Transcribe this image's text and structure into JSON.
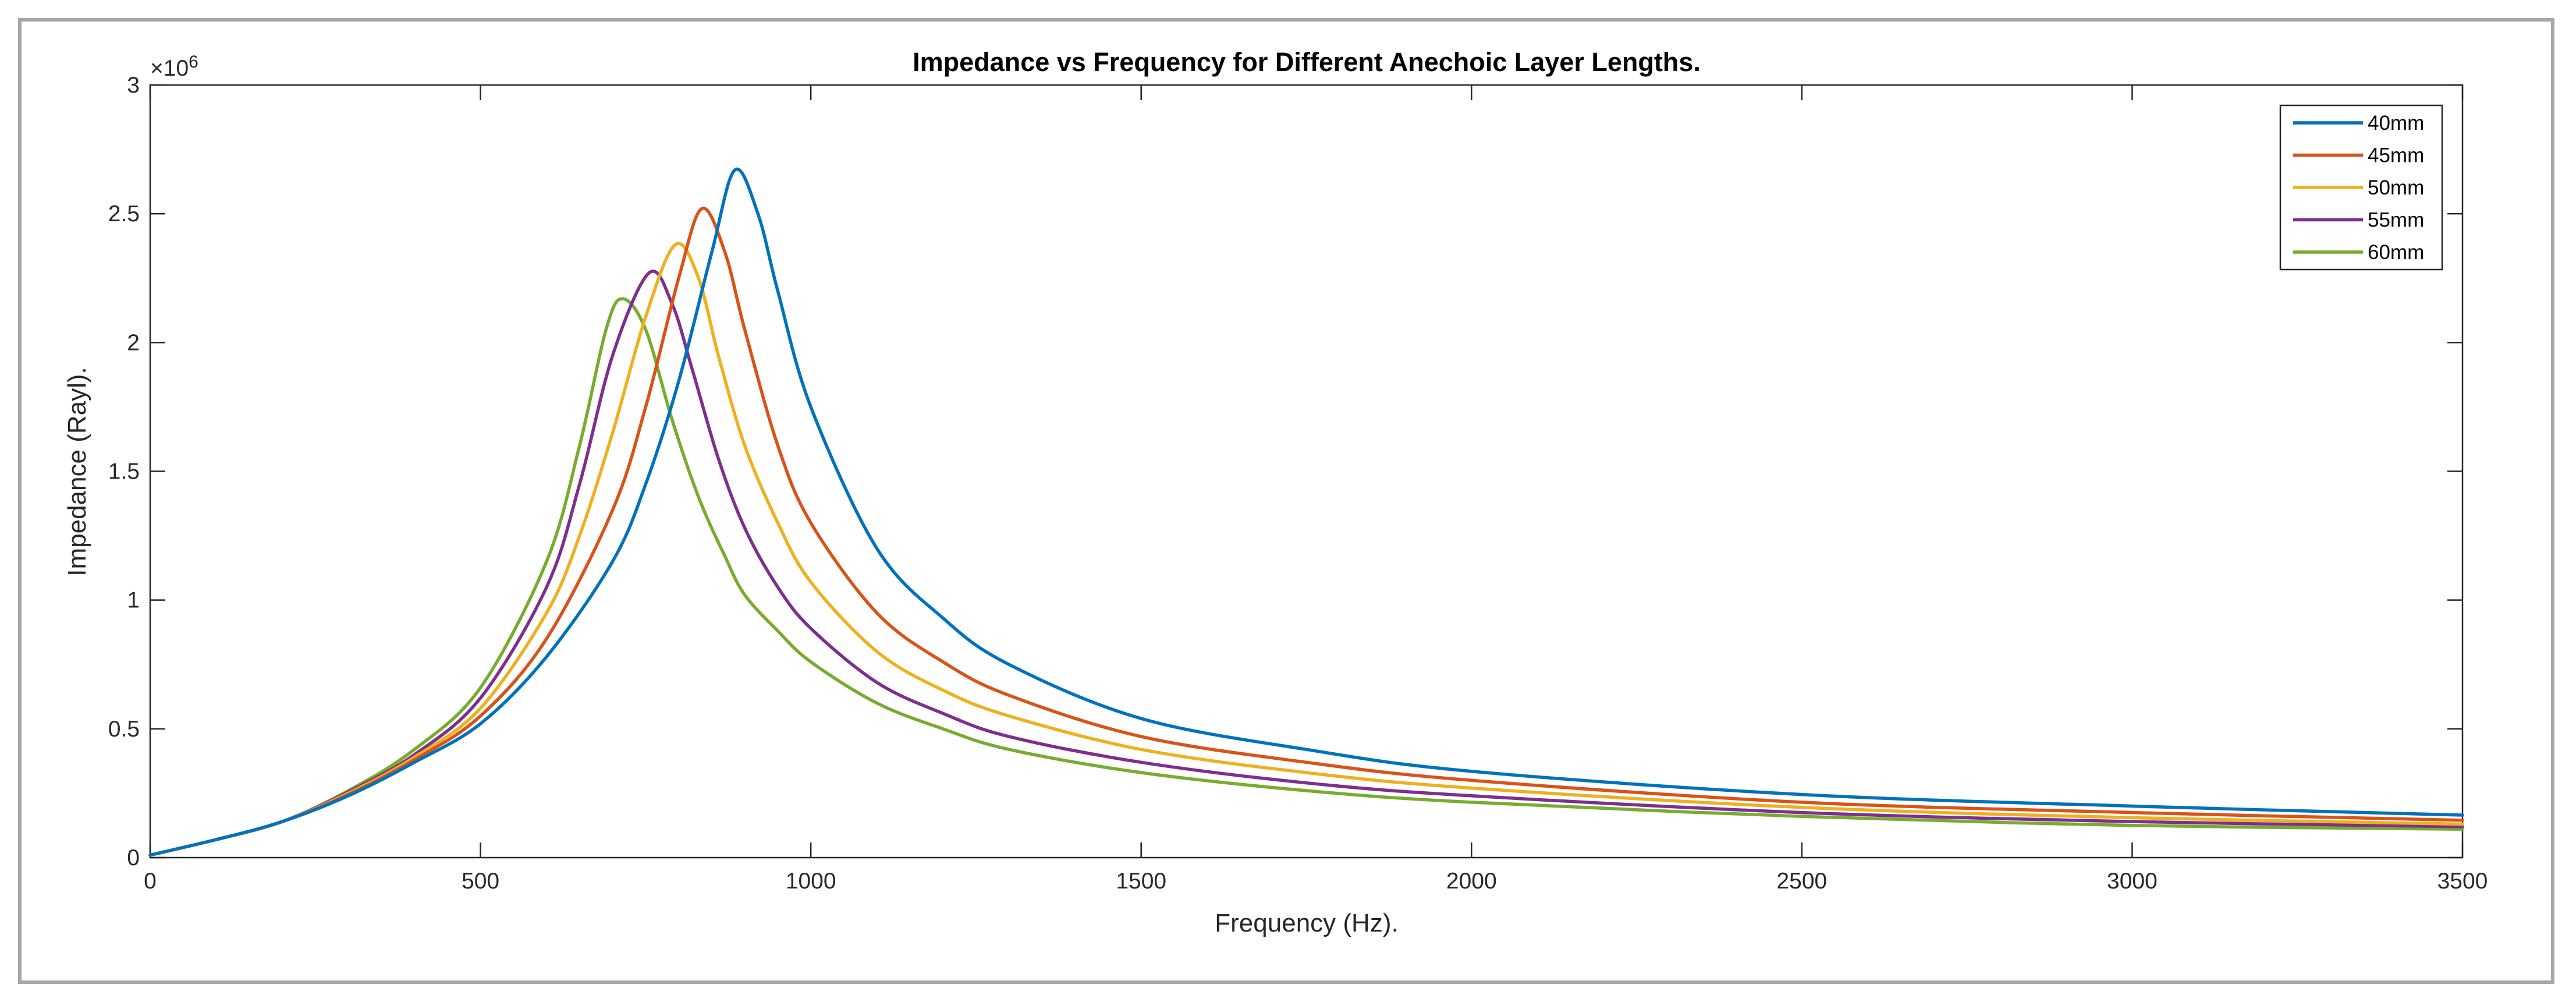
{
  "chart_data": {
    "type": "line",
    "title": "Impedance vs Frequency for Different Anechoic Layer Lengths.",
    "xlabel": "Frequency (Hz).",
    "ylabel": "Impedance (Rayl).",
    "xlim": [
      0,
      3500
    ],
    "ylim": [
      0,
      3
    ],
    "y_multiplier_base": "×10",
    "y_multiplier_exp": "6",
    "x_ticks": [
      0,
      500,
      1000,
      1500,
      2000,
      2500,
      3000,
      3500
    ],
    "x_tick_labels": [
      "0",
      "500",
      "1000",
      "1500",
      "2000",
      "2500",
      "3000",
      "3500"
    ],
    "y_ticks": [
      0,
      0.5,
      1,
      1.5,
      2,
      2.5,
      3
    ],
    "y_tick_labels": [
      "0",
      "0.5",
      "1",
      "1.5",
      "2",
      "2.5",
      "3"
    ],
    "grid": false,
    "legend_position": "top-right",
    "series": [
      {
        "name": "40mm",
        "color": "#0072BD",
        "peak_x": 885,
        "peak_y": 2.67,
        "end_y": 0.165,
        "points": [
          [
            0,
            0.01
          ],
          [
            100,
            0.07
          ],
          [
            200,
            0.14
          ],
          [
            300,
            0.24
          ],
          [
            400,
            0.37
          ],
          [
            500,
            0.52
          ],
          [
            600,
            0.78
          ],
          [
            700,
            1.15
          ],
          [
            750,
            1.45
          ],
          [
            800,
            1.85
          ],
          [
            850,
            2.35
          ],
          [
            885,
            2.67
          ],
          [
            920,
            2.5
          ],
          [
            950,
            2.2
          ],
          [
            1000,
            1.75
          ],
          [
            1100,
            1.2
          ],
          [
            1200,
            0.93
          ],
          [
            1300,
            0.75
          ],
          [
            1500,
            0.54
          ],
          [
            1750,
            0.42
          ],
          [
            2000,
            0.335
          ],
          [
            2500,
            0.245
          ],
          [
            3000,
            0.2
          ],
          [
            3500,
            0.165
          ]
        ]
      },
      {
        "name": "45mm",
        "color": "#D95319",
        "peak_x": 835,
        "peak_y": 2.52,
        "end_y": 0.145,
        "points": [
          [
            0,
            0.01
          ],
          [
            100,
            0.07
          ],
          [
            200,
            0.14
          ],
          [
            300,
            0.245
          ],
          [
            400,
            0.38
          ],
          [
            500,
            0.55
          ],
          [
            600,
            0.85
          ],
          [
            700,
            1.35
          ],
          [
            750,
            1.75
          ],
          [
            800,
            2.25
          ],
          [
            835,
            2.52
          ],
          [
            870,
            2.35
          ],
          [
            900,
            2.05
          ],
          [
            950,
            1.6
          ],
          [
            1000,
            1.3
          ],
          [
            1100,
            0.95
          ],
          [
            1200,
            0.76
          ],
          [
            1300,
            0.63
          ],
          [
            1500,
            0.47
          ],
          [
            1750,
            0.37
          ],
          [
            2000,
            0.3
          ],
          [
            2500,
            0.215
          ],
          [
            3000,
            0.175
          ],
          [
            3500,
            0.145
          ]
        ]
      },
      {
        "name": "50mm",
        "color": "#EDB120",
        "peak_x": 795,
        "peak_y": 2.38,
        "end_y": 0.13,
        "points": [
          [
            0,
            0.01
          ],
          [
            100,
            0.07
          ],
          [
            200,
            0.14
          ],
          [
            300,
            0.25
          ],
          [
            400,
            0.39
          ],
          [
            500,
            0.58
          ],
          [
            600,
            0.95
          ],
          [
            650,
            1.25
          ],
          [
            700,
            1.65
          ],
          [
            750,
            2.1
          ],
          [
            795,
            2.38
          ],
          [
            830,
            2.25
          ],
          [
            860,
            1.95
          ],
          [
            900,
            1.6
          ],
          [
            950,
            1.3
          ],
          [
            1000,
            1.07
          ],
          [
            1100,
            0.8
          ],
          [
            1200,
            0.65
          ],
          [
            1300,
            0.55
          ],
          [
            1500,
            0.42
          ],
          [
            1750,
            0.33
          ],
          [
            2000,
            0.27
          ],
          [
            2500,
            0.195
          ],
          [
            3000,
            0.155
          ],
          [
            3500,
            0.13
          ]
        ]
      },
      {
        "name": "55mm",
        "color": "#7E2F8E",
        "peak_x": 755,
        "peak_y": 2.27,
        "end_y": 0.12,
        "points": [
          [
            0,
            0.01
          ],
          [
            100,
            0.07
          ],
          [
            200,
            0.14
          ],
          [
            300,
            0.255
          ],
          [
            400,
            0.4
          ],
          [
            500,
            0.62
          ],
          [
            600,
            1.05
          ],
          [
            650,
            1.45
          ],
          [
            700,
            1.95
          ],
          [
            755,
            2.27
          ],
          [
            790,
            2.15
          ],
          [
            820,
            1.9
          ],
          [
            860,
            1.55
          ],
          [
            900,
            1.28
          ],
          [
            950,
            1.05
          ],
          [
            1000,
            0.89
          ],
          [
            1100,
            0.68
          ],
          [
            1200,
            0.56
          ],
          [
            1300,
            0.47
          ],
          [
            1500,
            0.37
          ],
          [
            1750,
            0.29
          ],
          [
            2000,
            0.24
          ],
          [
            2500,
            0.175
          ],
          [
            3000,
            0.14
          ],
          [
            3500,
            0.12
          ]
        ]
      },
      {
        "name": "60mm",
        "color": "#77AC30",
        "peak_x": 715,
        "peak_y": 2.17,
        "end_y": 0.11,
        "points": [
          [
            0,
            0.01
          ],
          [
            100,
            0.07
          ],
          [
            200,
            0.14
          ],
          [
            300,
            0.26
          ],
          [
            400,
            0.42
          ],
          [
            500,
            0.66
          ],
          [
            600,
            1.15
          ],
          [
            650,
            1.6
          ],
          [
            690,
            2.05
          ],
          [
            715,
            2.17
          ],
          [
            750,
            2.05
          ],
          [
            790,
            1.7
          ],
          [
            830,
            1.4
          ],
          [
            870,
            1.17
          ],
          [
            900,
            1.02
          ],
          [
            950,
            0.88
          ],
          [
            1000,
            0.76
          ],
          [
            1100,
            0.6
          ],
          [
            1200,
            0.5
          ],
          [
            1300,
            0.42
          ],
          [
            1500,
            0.33
          ],
          [
            1750,
            0.26
          ],
          [
            2000,
            0.215
          ],
          [
            2500,
            0.16
          ],
          [
            3000,
            0.125
          ],
          [
            3500,
            0.11
          ]
        ]
      }
    ]
  }
}
